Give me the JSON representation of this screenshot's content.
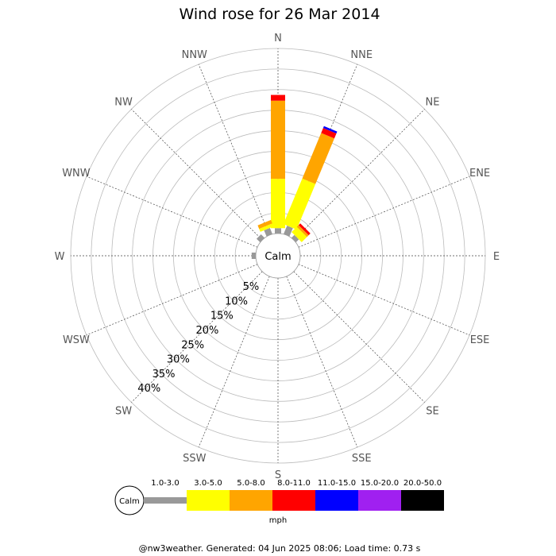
{
  "title": "Wind rose for 26 Mar 2014",
  "footer": "@nw3weather. Generated: 04 Jun 2025 08:06; Load time: 0.73 s",
  "calm_label": "Calm",
  "unit": "mph",
  "chart_data": {
    "type": "wind-rose",
    "title": "Wind rose for 26 Mar 2014",
    "directions": [
      "N",
      "NNE",
      "NE",
      "ENE",
      "E",
      "ESE",
      "SE",
      "SSE",
      "S",
      "SSW",
      "SW",
      "WSW",
      "W",
      "WNW",
      "NW",
      "NNW"
    ],
    "ring_values": [
      5,
      10,
      15,
      20,
      25,
      30,
      35,
      40
    ],
    "ring_labels": [
      "5%",
      "10%",
      "15%",
      "20%",
      "25%",
      "30%",
      "35%",
      "40%"
    ],
    "rmax": 45,
    "speed_bins": [
      {
        "label": "1.0-3.0",
        "color": "#999999"
      },
      {
        "label": "3.0-5.0",
        "color": "#ffff00"
      },
      {
        "label": "5.0-8.0",
        "color": "#ffa500"
      },
      {
        "label": "8.0-11.0",
        "color": "#ff0000"
      },
      {
        "label": "11.0-15.0",
        "color": "#0000ff"
      },
      {
        "label": "15.0-20.0",
        "color": "#a020f0"
      },
      {
        "label": "20.0-50.0",
        "color": "#000000"
      }
    ],
    "unit": "mph",
    "calm_label": "Calm",
    "frequencies": {
      "N": [
        1.3,
        12.0,
        19.0,
        1.4,
        0,
        0,
        0
      ],
      "NNE": [
        2.2,
        12.0,
        12.0,
        1.3,
        0.5,
        0,
        0
      ],
      "NE": [
        1.0,
        1.8,
        0.6,
        0.6,
        0,
        0,
        0
      ],
      "ENE": [
        0,
        0,
        0,
        0,
        0,
        0,
        0
      ],
      "E": [
        0,
        0,
        0,
        0,
        0,
        0,
        0
      ],
      "ESE": [
        0,
        0,
        0,
        0,
        0,
        0,
        0
      ],
      "SE": [
        0,
        0,
        0,
        0,
        0,
        0,
        0
      ],
      "SSE": [
        0,
        0,
        0,
        0,
        0,
        0,
        0
      ],
      "S": [
        0,
        0,
        0,
        0,
        0,
        0,
        0
      ],
      "SSW": [
        0,
        0,
        0,
        0,
        0,
        0,
        0
      ],
      "SW": [
        0,
        0,
        0,
        0,
        0,
        0,
        0
      ],
      "WSW": [
        0,
        0,
        0,
        0,
        0,
        0,
        0
      ],
      "W": [
        1.0,
        0,
        0,
        0,
        0,
        0,
        0
      ],
      "WNW": [
        0,
        0,
        0,
        0,
        0,
        0,
        0
      ],
      "NW": [
        1.2,
        0,
        0,
        0,
        0,
        0,
        0
      ],
      "NNW": [
        1.6,
        0.8,
        0.9,
        0,
        0,
        0,
        0
      ]
    }
  }
}
